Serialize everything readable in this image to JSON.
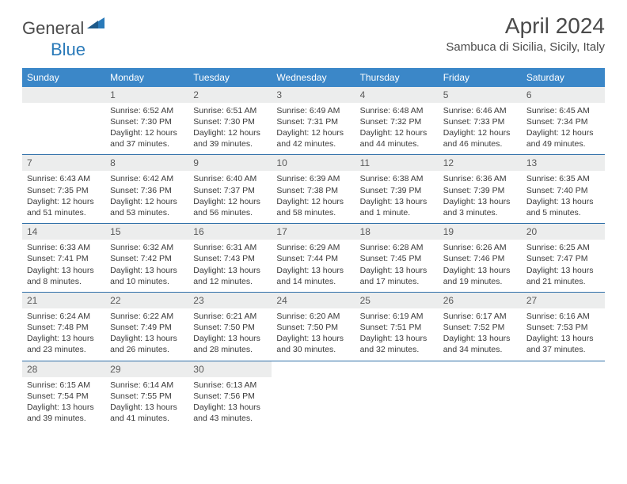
{
  "brand": {
    "part1": "General",
    "part2": "Blue"
  },
  "title": "April 2024",
  "location": "Sambuca di Sicilia, Sicily, Italy",
  "colors": {
    "header_bg": "#3b87c8",
    "header_text": "#ffffff",
    "rule": "#2f6fa8",
    "daynum_bg": "#eceded",
    "text": "#3a3a3a",
    "title_text": "#4a4a4a"
  },
  "typography": {
    "title_fontsize": 28,
    "location_fontsize": 15,
    "dayhead_fontsize": 12,
    "daynum_fontsize": 12,
    "body_fontsize": 10.5
  },
  "layout": {
    "cols": 7,
    "rows": 5,
    "first_weekday_offset": 1
  },
  "weekdays": [
    "Sunday",
    "Monday",
    "Tuesday",
    "Wednesday",
    "Thursday",
    "Friday",
    "Saturday"
  ],
  "days": [
    {
      "n": 1,
      "sr": "6:52 AM",
      "ss": "7:30 PM",
      "dl": "12 hours and 37 minutes."
    },
    {
      "n": 2,
      "sr": "6:51 AM",
      "ss": "7:30 PM",
      "dl": "12 hours and 39 minutes."
    },
    {
      "n": 3,
      "sr": "6:49 AM",
      "ss": "7:31 PM",
      "dl": "12 hours and 42 minutes."
    },
    {
      "n": 4,
      "sr": "6:48 AM",
      "ss": "7:32 PM",
      "dl": "12 hours and 44 minutes."
    },
    {
      "n": 5,
      "sr": "6:46 AM",
      "ss": "7:33 PM",
      "dl": "12 hours and 46 minutes."
    },
    {
      "n": 6,
      "sr": "6:45 AM",
      "ss": "7:34 PM",
      "dl": "12 hours and 49 minutes."
    },
    {
      "n": 7,
      "sr": "6:43 AM",
      "ss": "7:35 PM",
      "dl": "12 hours and 51 minutes."
    },
    {
      "n": 8,
      "sr": "6:42 AM",
      "ss": "7:36 PM",
      "dl": "12 hours and 53 minutes."
    },
    {
      "n": 9,
      "sr": "6:40 AM",
      "ss": "7:37 PM",
      "dl": "12 hours and 56 minutes."
    },
    {
      "n": 10,
      "sr": "6:39 AM",
      "ss": "7:38 PM",
      "dl": "12 hours and 58 minutes."
    },
    {
      "n": 11,
      "sr": "6:38 AM",
      "ss": "7:39 PM",
      "dl": "13 hours and 1 minute."
    },
    {
      "n": 12,
      "sr": "6:36 AM",
      "ss": "7:39 PM",
      "dl": "13 hours and 3 minutes."
    },
    {
      "n": 13,
      "sr": "6:35 AM",
      "ss": "7:40 PM",
      "dl": "13 hours and 5 minutes."
    },
    {
      "n": 14,
      "sr": "6:33 AM",
      "ss": "7:41 PM",
      "dl": "13 hours and 8 minutes."
    },
    {
      "n": 15,
      "sr": "6:32 AM",
      "ss": "7:42 PM",
      "dl": "13 hours and 10 minutes."
    },
    {
      "n": 16,
      "sr": "6:31 AM",
      "ss": "7:43 PM",
      "dl": "13 hours and 12 minutes."
    },
    {
      "n": 17,
      "sr": "6:29 AM",
      "ss": "7:44 PM",
      "dl": "13 hours and 14 minutes."
    },
    {
      "n": 18,
      "sr": "6:28 AM",
      "ss": "7:45 PM",
      "dl": "13 hours and 17 minutes."
    },
    {
      "n": 19,
      "sr": "6:26 AM",
      "ss": "7:46 PM",
      "dl": "13 hours and 19 minutes."
    },
    {
      "n": 20,
      "sr": "6:25 AM",
      "ss": "7:47 PM",
      "dl": "13 hours and 21 minutes."
    },
    {
      "n": 21,
      "sr": "6:24 AM",
      "ss": "7:48 PM",
      "dl": "13 hours and 23 minutes."
    },
    {
      "n": 22,
      "sr": "6:22 AM",
      "ss": "7:49 PM",
      "dl": "13 hours and 26 minutes."
    },
    {
      "n": 23,
      "sr": "6:21 AM",
      "ss": "7:50 PM",
      "dl": "13 hours and 28 minutes."
    },
    {
      "n": 24,
      "sr": "6:20 AM",
      "ss": "7:50 PM",
      "dl": "13 hours and 30 minutes."
    },
    {
      "n": 25,
      "sr": "6:19 AM",
      "ss": "7:51 PM",
      "dl": "13 hours and 32 minutes."
    },
    {
      "n": 26,
      "sr": "6:17 AM",
      "ss": "7:52 PM",
      "dl": "13 hours and 34 minutes."
    },
    {
      "n": 27,
      "sr": "6:16 AM",
      "ss": "7:53 PM",
      "dl": "13 hours and 37 minutes."
    },
    {
      "n": 28,
      "sr": "6:15 AM",
      "ss": "7:54 PM",
      "dl": "13 hours and 39 minutes."
    },
    {
      "n": 29,
      "sr": "6:14 AM",
      "ss": "7:55 PM",
      "dl": "13 hours and 41 minutes."
    },
    {
      "n": 30,
      "sr": "6:13 AM",
      "ss": "7:56 PM",
      "dl": "13 hours and 43 minutes."
    }
  ]
}
